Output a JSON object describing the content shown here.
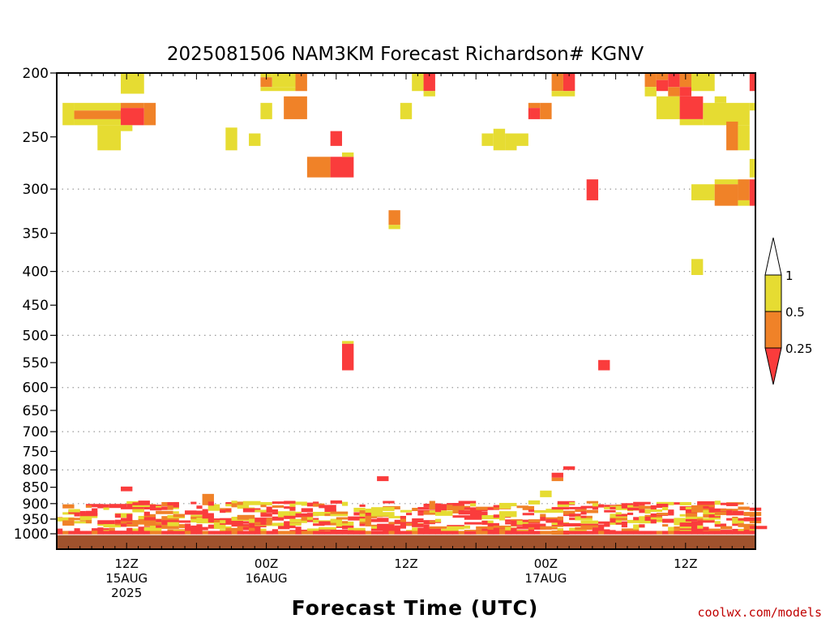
{
  "chart_data": {
    "type": "heatmap",
    "title": "2025081506 NAM3KM Forecast Richardson# KGNV",
    "xlabel": "Forecast Time (UTC)",
    "ylabel": "",
    "credit": "coolwx.com/models",
    "y_axis": {
      "unit": "hPa",
      "scale": "log",
      "range": [
        1000,
        200
      ],
      "ticks": [
        200,
        250,
        300,
        350,
        400,
        450,
        500,
        550,
        600,
        650,
        700,
        750,
        800,
        850,
        900,
        950,
        1000
      ],
      "dotted_gridlines": [
        300,
        400,
        500,
        600,
        700,
        800,
        900
      ]
    },
    "x_axis": {
      "range_hours": [
        0,
        60
      ],
      "tick_labels": [
        {
          "hour": 6,
          "line1": "12Z",
          "line2": "15AUG",
          "line3": "2025"
        },
        {
          "hour": 18,
          "line1": "00Z",
          "line2": "16AUG",
          "line3": ""
        },
        {
          "hour": 30,
          "line1": "12Z",
          "line2": "",
          "line3": ""
        },
        {
          "hour": 42,
          "line1": "00Z",
          "line2": "17AUG",
          "line3": ""
        },
        {
          "hour": 54,
          "line1": "12Z",
          "line2": "",
          "line3": ""
        }
      ]
    },
    "legend": {
      "placement": "right",
      "labels": [
        "1",
        "0.5",
        "0.25"
      ],
      "bins": [
        {
          "range": "> 1",
          "color": "#ffffff"
        },
        {
          "range": "0.5 - 1",
          "color": "#e6dc32"
        },
        {
          "range": "0.25 - 0.5",
          "color": "#f08228"
        },
        {
          "range": "< 0.25",
          "color": "#fa3c3c"
        }
      ]
    },
    "colors": {
      "yellow": "#e6dc32",
      "orange": "#f08228",
      "red": "#fa3c3c",
      "ground": "#a0522d"
    },
    "surface_pressure": 1015,
    "upper_cells": [
      {
        "t0": 5.5,
        "t1": 7.5,
        "p0": 200,
        "p1": 215,
        "c": "yellow"
      },
      {
        "t0": 0.5,
        "t1": 1.5,
        "p0": 222,
        "p1": 240,
        "c": "yellow"
      },
      {
        "t0": 1.5,
        "t1": 5.5,
        "p0": 222,
        "p1": 228,
        "c": "yellow"
      },
      {
        "t0": 1.5,
        "t1": 5.5,
        "p0": 228,
        "p1": 235,
        "c": "orange"
      },
      {
        "t0": 1.5,
        "t1": 5.5,
        "p0": 235,
        "p1": 240,
        "c": "yellow"
      },
      {
        "t0": 5.5,
        "t1": 7.5,
        "p0": 222,
        "p1": 226,
        "c": "orange"
      },
      {
        "t0": 5.5,
        "t1": 7.5,
        "p0": 226,
        "p1": 240,
        "c": "red"
      },
      {
        "t0": 7.5,
        "t1": 8.5,
        "p0": 222,
        "p1": 240,
        "c": "orange"
      },
      {
        "t0": 3.5,
        "t1": 5.5,
        "p0": 240,
        "p1": 262,
        "c": "yellow"
      },
      {
        "t0": 5.5,
        "t1": 6.5,
        "p0": 240,
        "p1": 245,
        "c": "yellow"
      },
      {
        "t0": 14.5,
        "t1": 15.5,
        "p0": 242,
        "p1": 262,
        "c": "yellow"
      },
      {
        "t0": 16.5,
        "t1": 17.5,
        "p0": 247,
        "p1": 258,
        "c": "yellow"
      },
      {
        "t0": 17.5,
        "t1": 18.5,
        "p0": 200,
        "p1": 203,
        "c": "yellow"
      },
      {
        "t0": 17.5,
        "t1": 18.5,
        "p0": 203,
        "p1": 210,
        "c": "orange"
      },
      {
        "t0": 18.5,
        "t1": 20.5,
        "p0": 200,
        "p1": 210,
        "c": "yellow"
      },
      {
        "t0": 17.5,
        "t1": 20.5,
        "p0": 210,
        "p1": 213,
        "c": "yellow"
      },
      {
        "t0": 20.5,
        "t1": 21.5,
        "p0": 200,
        "p1": 213,
        "c": "orange"
      },
      {
        "t0": 17.5,
        "t1": 18.5,
        "p0": 222,
        "p1": 235,
        "c": "yellow"
      },
      {
        "t0": 19.5,
        "t1": 21.5,
        "p0": 217,
        "p1": 235,
        "c": "orange"
      },
      {
        "t0": 23.5,
        "t1": 24.5,
        "p0": 245,
        "p1": 258,
        "c": "red"
      },
      {
        "t0": 21.5,
        "t1": 23.5,
        "p0": 268,
        "p1": 288,
        "c": "orange"
      },
      {
        "t0": 23.5,
        "t1": 25.5,
        "p0": 268,
        "p1": 288,
        "c": "red"
      },
      {
        "t0": 24.5,
        "t1": 25.5,
        "p0": 264,
        "p1": 268,
        "c": "yellow"
      },
      {
        "t0": 29.5,
        "t1": 30.5,
        "p0": 222,
        "p1": 235,
        "c": "yellow"
      },
      {
        "t0": 30.5,
        "t1": 31.5,
        "p0": 200,
        "p1": 213,
        "c": "yellow"
      },
      {
        "t0": 31.5,
        "t1": 32.5,
        "p0": 200,
        "p1": 213,
        "c": "red"
      },
      {
        "t0": 31.5,
        "t1": 32.5,
        "p0": 213,
        "p1": 217,
        "c": "yellow"
      },
      {
        "t0": 36.5,
        "t1": 37.5,
        "p0": 247,
        "p1": 258,
        "c": "yellow"
      },
      {
        "t0": 37.5,
        "t1": 38.5,
        "p0": 243,
        "p1": 262,
        "c": "yellow"
      },
      {
        "t0": 38.5,
        "t1": 39.5,
        "p0": 247,
        "p1": 262,
        "c": "yellow"
      },
      {
        "t0": 39.5,
        "t1": 40.5,
        "p0": 247,
        "p1": 258,
        "c": "yellow"
      },
      {
        "t0": 40.5,
        "t1": 41.5,
        "p0": 222,
        "p1": 226,
        "c": "orange"
      },
      {
        "t0": 40.5,
        "t1": 41.5,
        "p0": 226,
        "p1": 235,
        "c": "red"
      },
      {
        "t0": 41.5,
        "t1": 42.5,
        "p0": 222,
        "p1": 235,
        "c": "orange"
      },
      {
        "t0": 42.5,
        "t1": 43.5,
        "p0": 200,
        "p1": 213,
        "c": "orange"
      },
      {
        "t0": 43.5,
        "t1": 44.5,
        "p0": 200,
        "p1": 213,
        "c": "red"
      },
      {
        "t0": 42.5,
        "t1": 44.5,
        "p0": 213,
        "p1": 217,
        "c": "yellow"
      },
      {
        "t0": 45.5,
        "t1": 46.5,
        "p0": 290,
        "p1": 312,
        "c": "red"
      },
      {
        "t0": 24.5,
        "t1": 25.5,
        "p0": 510,
        "p1": 515,
        "c": "yellow"
      },
      {
        "t0": 24.5,
        "t1": 25.5,
        "p0": 515,
        "p1": 565,
        "c": "red"
      },
      {
        "t0": 28.5,
        "t1": 29.5,
        "p0": 323,
        "p1": 340,
        "c": "orange"
      },
      {
        "t0": 28.5,
        "t1": 29.5,
        "p0": 340,
        "p1": 345,
        "c": "yellow"
      },
      {
        "t0": 46.5,
        "t1": 47.5,
        "p0": 545,
        "p1": 565,
        "c": "red"
      },
      {
        "t0": 50.5,
        "t1": 51.5,
        "p0": 200,
        "p1": 210,
        "c": "orange"
      },
      {
        "t0": 50.5,
        "t1": 51.5,
        "p0": 210,
        "p1": 217,
        "c": "yellow"
      },
      {
        "t0": 51.5,
        "t1": 52.5,
        "p0": 200,
        "p1": 205,
        "c": "orange"
      },
      {
        "t0": 51.5,
        "t1": 52.5,
        "p0": 205,
        "p1": 213,
        "c": "red"
      },
      {
        "t0": 52.5,
        "t1": 53.5,
        "p0": 200,
        "p1": 210,
        "c": "red"
      },
      {
        "t0": 52.5,
        "t1": 53.5,
        "p0": 210,
        "p1": 217,
        "c": "orange"
      },
      {
        "t0": 53.5,
        "t1": 54.5,
        "p0": 200,
        "p1": 210,
        "c": "orange"
      },
      {
        "t0": 53.5,
        "t1": 54.5,
        "p0": 210,
        "p1": 217,
        "c": "red"
      },
      {
        "t0": 54.5,
        "t1": 56.5,
        "p0": 200,
        "p1": 213,
        "c": "yellow"
      },
      {
        "t0": 51.5,
        "t1": 53.5,
        "p0": 217,
        "p1": 235,
        "c": "yellow"
      },
      {
        "t0": 53.5,
        "t1": 55.5,
        "p0": 217,
        "p1": 235,
        "c": "red"
      },
      {
        "t0": 53.5,
        "t1": 55.5,
        "p0": 235,
        "p1": 240,
        "c": "yellow"
      },
      {
        "t0": 55.5,
        "t1": 59.5,
        "p0": 222,
        "p1": 240,
        "c": "yellow"
      },
      {
        "t0": 56.5,
        "t1": 57.5,
        "p0": 217,
        "p1": 222,
        "c": "yellow"
      },
      {
        "t0": 57.5,
        "t1": 58.5,
        "p0": 237,
        "p1": 262,
        "c": "orange"
      },
      {
        "t0": 58.5,
        "t1": 59.5,
        "p0": 240,
        "p1": 262,
        "c": "yellow"
      },
      {
        "t0": 59.5,
        "t1": 60,
        "p0": 200,
        "p1": 213,
        "c": "red"
      },
      {
        "t0": 59.5,
        "t1": 60,
        "p0": 222,
        "p1": 228,
        "c": "yellow"
      },
      {
        "t0": 59.5,
        "t1": 60,
        "p0": 270,
        "p1": 288,
        "c": "yellow"
      },
      {
        "t0": 54.5,
        "t1": 56.5,
        "p0": 295,
        "p1": 312,
        "c": "yellow"
      },
      {
        "t0": 56.5,
        "t1": 58.5,
        "p0": 290,
        "p1": 295,
        "c": "yellow"
      },
      {
        "t0": 56.5,
        "t1": 58.5,
        "p0": 295,
        "p1": 318,
        "c": "orange"
      },
      {
        "t0": 58.5,
        "t1": 59.5,
        "p0": 290,
        "p1": 312,
        "c": "orange"
      },
      {
        "t0": 58.5,
        "t1": 59.5,
        "p0": 312,
        "p1": 318,
        "c": "yellow"
      },
      {
        "t0": 59.5,
        "t1": 60,
        "p0": 290,
        "p1": 318,
        "c": "red"
      },
      {
        "t0": 54.5,
        "t1": 55.5,
        "p0": 383,
        "p1": 405,
        "c": "yellow"
      },
      {
        "t0": 27.5,
        "t1": 28.5,
        "p0": 818,
        "p1": 832,
        "c": "red"
      },
      {
        "t0": 43.5,
        "t1": 44.5,
        "p0": 790,
        "p1": 800,
        "c": "red"
      },
      {
        "t0": 42.5,
        "t1": 43.5,
        "p0": 808,
        "p1": 822,
        "c": "red"
      },
      {
        "t0": 42.5,
        "t1": 43.5,
        "p0": 822,
        "p1": 832,
        "c": "orange"
      },
      {
        "t0": 41.5,
        "t1": 42.5,
        "p0": 860,
        "p1": 880,
        "c": "yellow"
      },
      {
        "t0": 5.5,
        "t1": 6.5,
        "p0": 848,
        "p1": 862,
        "c": "red"
      },
      {
        "t0": 12.5,
        "t1": 13.5,
        "p0": 870,
        "p1": 905,
        "c": "orange"
      }
    ]
  }
}
